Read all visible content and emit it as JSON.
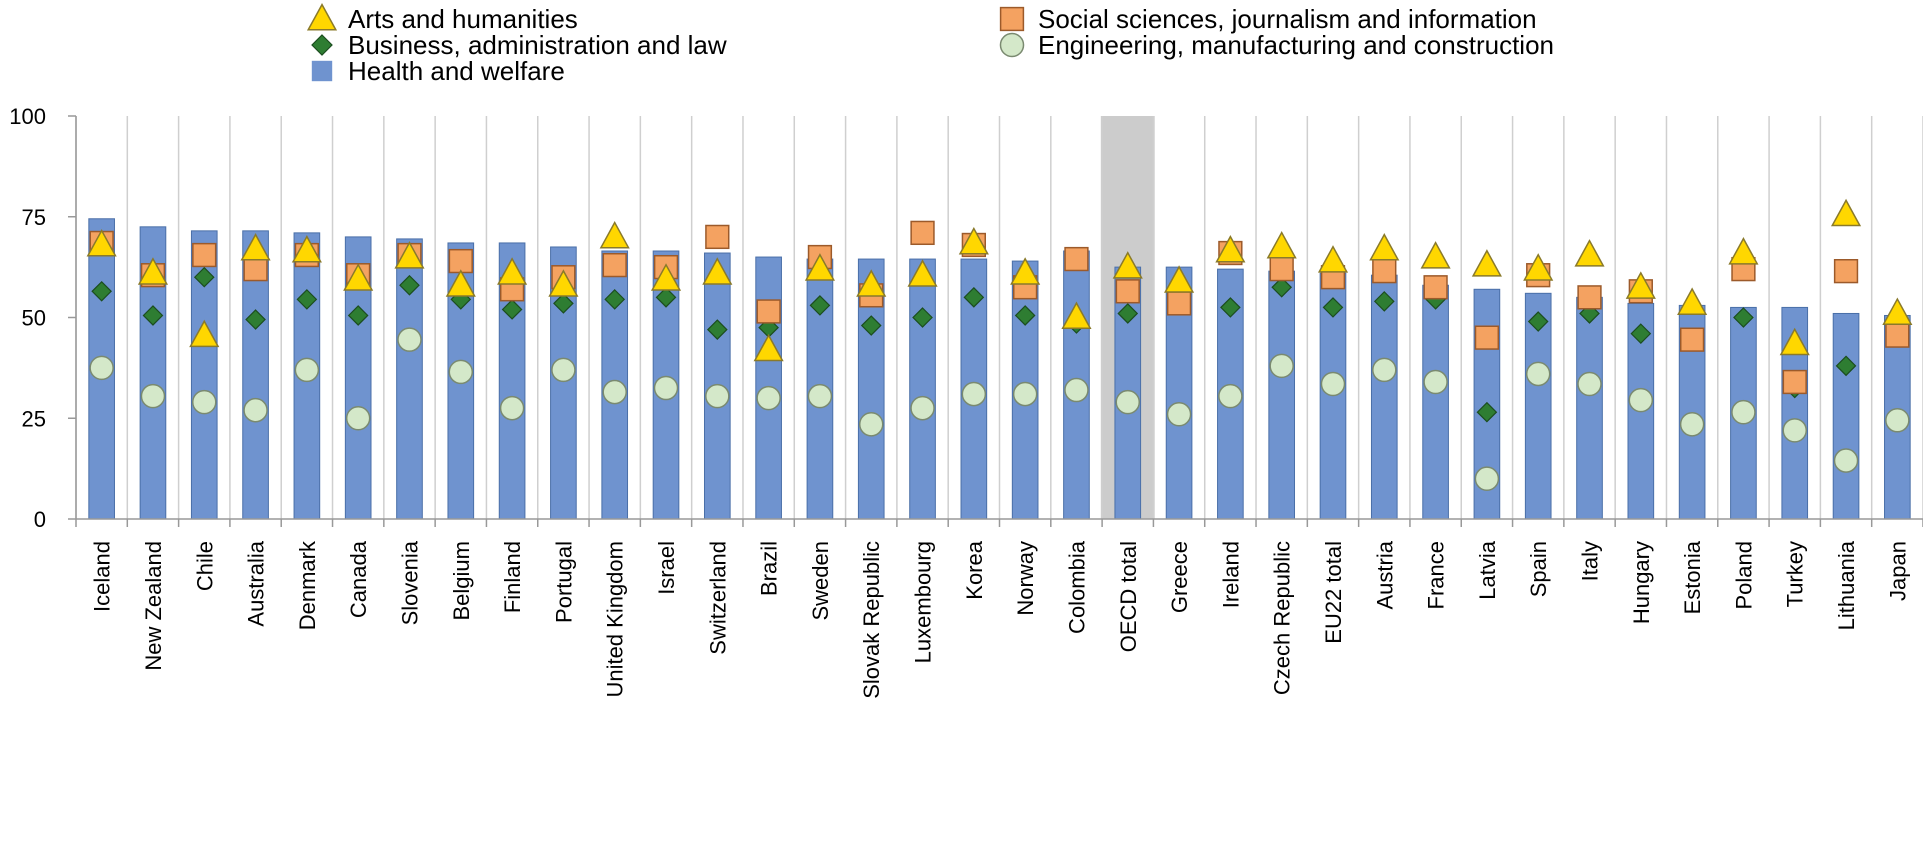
{
  "chart_data": {
    "type": "bar",
    "title": "",
    "xlabel": "",
    "ylabel": "",
    "ylim": [
      0,
      100
    ],
    "yticks": [
      0,
      25,
      50,
      75,
      100
    ],
    "grid": "vertical",
    "legend_position": "top",
    "highlighted_category": "OECD total",
    "categories": [
      "Iceland",
      "New Zealand",
      "Chile",
      "Australia",
      "Denmark",
      "Canada",
      "Slovenia",
      "Belgium",
      "Finland",
      "Portugal",
      "United Kingdom",
      "Israel",
      "Switzerland",
      "Brazil",
      "Sweden",
      "Slovak Republic",
      "Luxembourg",
      "Korea",
      "Norway",
      "Colombia",
      "OECD total",
      "Greece",
      "Ireland",
      "Czech Republic",
      "EU22 total",
      "Austria",
      "France",
      "Latvia",
      "Spain",
      "Italy",
      "Hungary",
      "Estonia",
      "Poland",
      "Turkey",
      "Lithuania",
      "Japan"
    ],
    "series": [
      {
        "name": "Health and welfare",
        "marker": "bar",
        "color": "#6f93cf",
        "values": [
          74.5,
          72.5,
          71.5,
          71.5,
          71,
          70,
          69.5,
          68.5,
          68.5,
          67.5,
          66.5,
          66.5,
          66,
          65,
          64.5,
          64.5,
          64.5,
          64.5,
          64,
          66.5,
          62.5,
          62.5,
          62,
          61.5,
          61,
          60.5,
          58,
          57,
          56,
          55,
          53.5,
          53,
          52.5,
          52.5,
          51,
          50.5
        ]
      },
      {
        "name": "Arts and humanities",
        "marker": "triangle",
        "color": "#ffd700",
        "values": [
          68,
          61,
          45.5,
          67,
          66.5,
          59.5,
          65,
          58,
          61,
          58,
          70,
          59.5,
          61,
          42,
          62,
          58,
          60.5,
          68.5,
          61,
          50,
          62.5,
          59,
          66.5,
          67.5,
          64,
          67,
          65,
          63,
          62,
          65.5,
          57.5,
          53.5,
          66,
          43.5,
          75.5,
          51
        ]
      },
      {
        "name": "Social sciences, journalism and information",
        "marker": "square",
        "color": "#f4a261",
        "values": [
          68.5,
          60.5,
          65.5,
          62,
          65.5,
          60.5,
          65.5,
          64,
          57,
          60,
          63,
          62.5,
          70,
          51.5,
          65,
          55.5,
          71,
          68,
          57.5,
          64.5,
          56.5,
          53.5,
          66,
          62,
          60,
          61.5,
          57.5,
          45,
          60.5,
          55,
          56.5,
          44.5,
          62,
          34,
          61.5,
          45.5
        ]
      },
      {
        "name": "Business, administration and law",
        "marker": "diamond",
        "color": "#2e7d32",
        "values": [
          56.5,
          50.5,
          60,
          49.5,
          54.5,
          50.5,
          58,
          54.5,
          52,
          53.5,
          54.5,
          55,
          47,
          47.5,
          53,
          48,
          50,
          55,
          50.5,
          48.5,
          51,
          null,
          52.5,
          57.5,
          52.5,
          54,
          54.5,
          26.5,
          49,
          51,
          46,
          null,
          50,
          32.5,
          38,
          null
        ]
      },
      {
        "name": "Engineering, manufacturing and construction",
        "marker": "circle",
        "color": "#d4e8c9",
        "values": [
          37.5,
          30.5,
          29,
          27,
          37,
          25,
          44.5,
          36.5,
          27.5,
          37,
          31.5,
          32.5,
          30.5,
          30,
          30.5,
          23.5,
          27.5,
          31,
          31,
          32,
          29,
          26,
          30.5,
          38,
          33.5,
          37,
          34,
          10,
          36,
          33.5,
          29.5,
          23.5,
          26.5,
          22,
          14.5,
          24.5
        ]
      }
    ],
    "legend": [
      {
        "label": "Arts and humanities",
        "marker": "triangle"
      },
      {
        "label": "Business, administration and law",
        "marker": "diamond"
      },
      {
        "label": "Health and welfare",
        "marker": "bar"
      },
      {
        "label": "Social sciences, journalism and information",
        "marker": "square"
      },
      {
        "label": "Engineering, manufacturing and construction",
        "marker": "circle"
      }
    ]
  },
  "colors": {
    "bar_fill": "#6f93cf",
    "bar_stroke": "#4a6fa8",
    "highlight_band": "#cccccc",
    "grid": "#cfcfcf",
    "triangle_fill": "#ffd700",
    "triangle_stroke": "#8a7a2a",
    "square_fill": "#f4a261",
    "square_stroke": "#9c5a2a",
    "diamond_fill": "#2e7d32",
    "diamond_stroke": "#1b4d1f",
    "circle_fill": "#d4e8c9",
    "circle_stroke": "#7a8a70"
  }
}
